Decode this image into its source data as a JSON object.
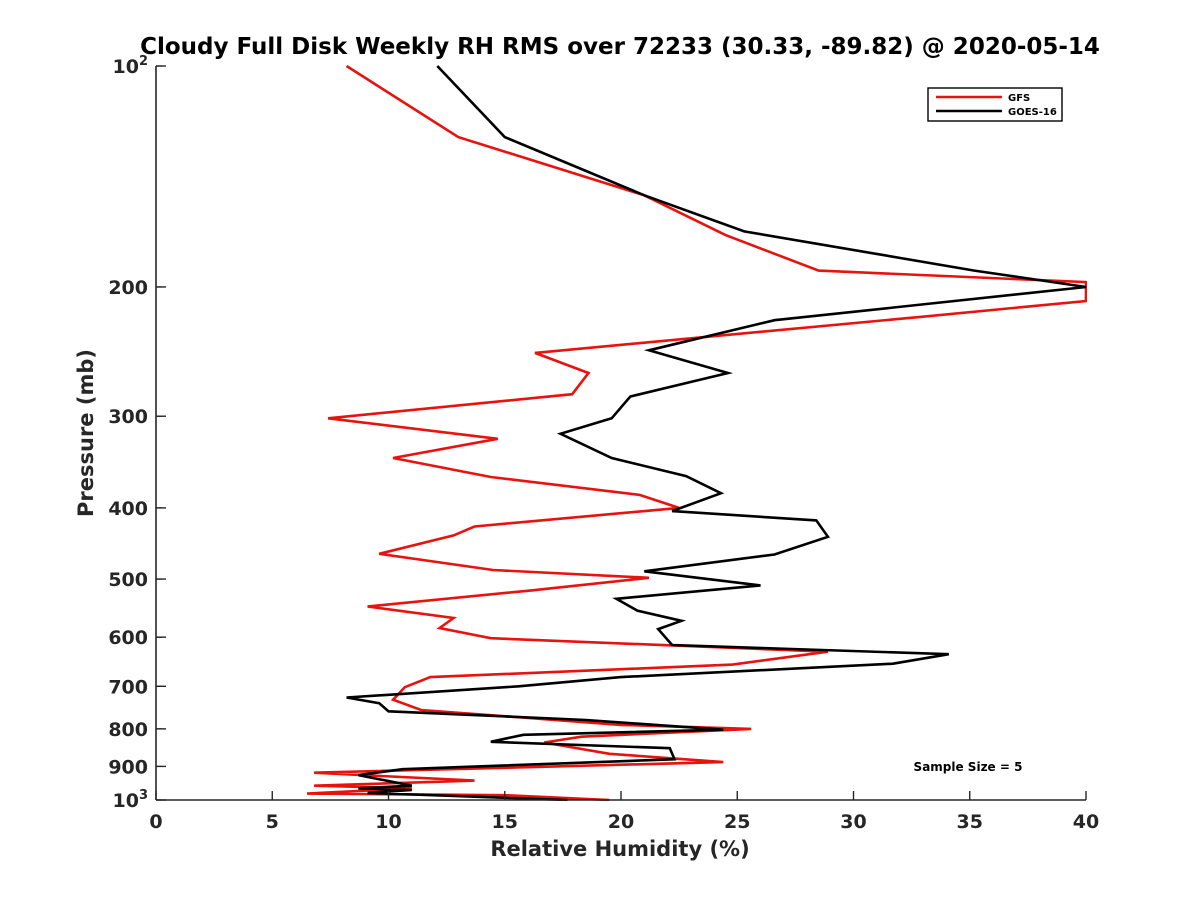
{
  "chart_data": {
    "type": "line",
    "title": "Cloudy Full Disk Weekly RH RMS over 72233 (30.33, -89.82) @ 2020-05-14",
    "xlabel": "Relative Humidity (%)",
    "ylabel": "Pressure (mb)",
    "xlim": [
      0,
      40
    ],
    "ylim": [
      100,
      1000
    ],
    "y_scale": "log",
    "y_reversed": true,
    "x_ticks": [
      0,
      5,
      10,
      15,
      20,
      25,
      30,
      35,
      40
    ],
    "x_tick_labels": [
      "0",
      "5",
      "10",
      "15",
      "20",
      "25",
      "30",
      "35",
      "40"
    ],
    "y_ticks": [
      {
        "value": 100,
        "base": "10",
        "exp": "2"
      },
      {
        "value": 200,
        "label": "200"
      },
      {
        "value": 300,
        "label": "300"
      },
      {
        "value": 400,
        "label": "400"
      },
      {
        "value": 500,
        "label": "500"
      },
      {
        "value": 600,
        "label": "600"
      },
      {
        "value": 700,
        "label": "700"
      },
      {
        "value": 800,
        "label": "800"
      },
      {
        "value": 900,
        "label": "900"
      },
      {
        "value": 1000,
        "base": "10",
        "exp": "3"
      }
    ],
    "legend": {
      "location": "top-right"
    },
    "annotation": "Sample Size = 5",
    "series": [
      {
        "name": "GFS",
        "color": "#e8120f",
        "points": [
          [
            8.2,
            100
          ],
          [
            13.0,
            125
          ],
          [
            21.0,
            150
          ],
          [
            24.5,
            170
          ],
          [
            28.5,
            190
          ],
          [
            40.0,
            197
          ],
          [
            40.0,
            209
          ],
          [
            32.7,
            220
          ],
          [
            16.3,
            246
          ],
          [
            18.6,
            262
          ],
          [
            17.9,
            280
          ],
          [
            7.4,
            302
          ],
          [
            14.7,
            322
          ],
          [
            10.2,
            342
          ],
          [
            14.4,
            363
          ],
          [
            20.8,
            384
          ],
          [
            22.5,
            400
          ],
          [
            13.7,
            424
          ],
          [
            12.8,
            436
          ],
          [
            9.6,
            462
          ],
          [
            14.5,
            486
          ],
          [
            21.2,
            498
          ],
          [
            16.2,
            518
          ],
          [
            9.1,
            545
          ],
          [
            12.8,
            565
          ],
          [
            12.2,
            583
          ],
          [
            14.4,
            602
          ],
          [
            28.9,
            628
          ],
          [
            24.8,
            654
          ],
          [
            11.8,
            680
          ],
          [
            10.7,
            702
          ],
          [
            10.2,
            730
          ],
          [
            11.4,
            754
          ],
          [
            20.0,
            790
          ],
          [
            25.6,
            800
          ],
          [
            18.3,
            820
          ],
          [
            16.7,
            835
          ],
          [
            19.5,
            865
          ],
          [
            24.4,
            888
          ],
          [
            6.8,
            918
          ],
          [
            13.7,
            941
          ],
          [
            6.8,
            956
          ],
          [
            11.0,
            964
          ],
          [
            6.5,
            980
          ],
          [
            15.0,
            985
          ],
          [
            19.5,
            1000
          ]
        ]
      },
      {
        "name": "GOES-16",
        "color": "#000000",
        "points": [
          [
            12.1,
            100
          ],
          [
            15.0,
            125
          ],
          [
            21.0,
            150
          ],
          [
            25.3,
            168
          ],
          [
            35.2,
            190
          ],
          [
            40.0,
            200
          ],
          [
            26.6,
            222
          ],
          [
            21.2,
            244
          ],
          [
            24.6,
            262
          ],
          [
            20.4,
            282
          ],
          [
            19.6,
            302
          ],
          [
            17.4,
            317
          ],
          [
            19.6,
            342
          ],
          [
            22.8,
            362
          ],
          [
            24.3,
            382
          ],
          [
            22.2,
            404
          ],
          [
            28.4,
            416
          ],
          [
            28.9,
            438
          ],
          [
            26.6,
            463
          ],
          [
            21.0,
            488
          ],
          [
            26.0,
            510
          ],
          [
            19.8,
            532
          ],
          [
            20.7,
            552
          ],
          [
            22.6,
            570
          ],
          [
            21.6,
            585
          ],
          [
            22.2,
            615
          ],
          [
            34.1,
            633
          ],
          [
            31.7,
            652
          ],
          [
            20.0,
            680
          ],
          [
            15.6,
            700
          ],
          [
            8.2,
            725
          ],
          [
            9.6,
            738
          ],
          [
            10.0,
            757
          ],
          [
            18.5,
            778
          ],
          [
            24.4,
            802
          ],
          [
            15.8,
            815
          ],
          [
            14.4,
            833
          ],
          [
            22.1,
            850
          ],
          [
            22.3,
            880
          ],
          [
            10.6,
            908
          ],
          [
            8.7,
            925
          ],
          [
            11.0,
            956
          ],
          [
            8.7,
            964
          ],
          [
            11.0,
            969
          ],
          [
            9.1,
            978
          ],
          [
            17.7,
            1000
          ]
        ]
      }
    ]
  }
}
